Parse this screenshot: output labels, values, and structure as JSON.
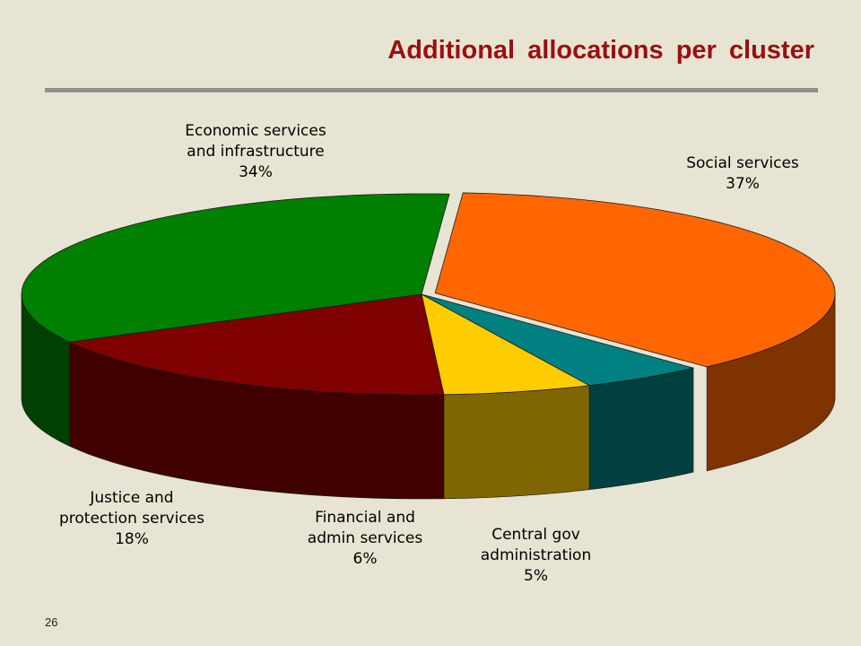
{
  "slide": {
    "title": "Additional allocations per cluster",
    "page_number": "26"
  },
  "chart_data": {
    "type": "pie",
    "title": "Additional allocations per cluster",
    "slices": [
      {
        "label_lines": [
          "Social services"
        ],
        "percent_label": "37%",
        "value": 37,
        "color": "#ff6600",
        "side_color": "#7f3300"
      },
      {
        "label_lines": [
          "Central gov",
          "administration"
        ],
        "percent_label": "5%",
        "value": 5,
        "color": "#008080",
        "side_color": "#004040"
      },
      {
        "label_lines": [
          "Financial and",
          "admin services"
        ],
        "percent_label": "6%",
        "value": 6,
        "color": "#ffcc00",
        "side_color": "#806600"
      },
      {
        "label_lines": [
          "Justice and",
          "protection services"
        ],
        "percent_label": "18%",
        "value": 18,
        "color": "#800000",
        "side_color": "#400000"
      },
      {
        "label_lines": [
          "Economic services",
          "and infrastructure"
        ],
        "percent_label": "34%",
        "value": 34,
        "color": "#008000",
        "side_color": "#004000"
      }
    ],
    "exploded_slice": "Social services",
    "style": "3d"
  }
}
